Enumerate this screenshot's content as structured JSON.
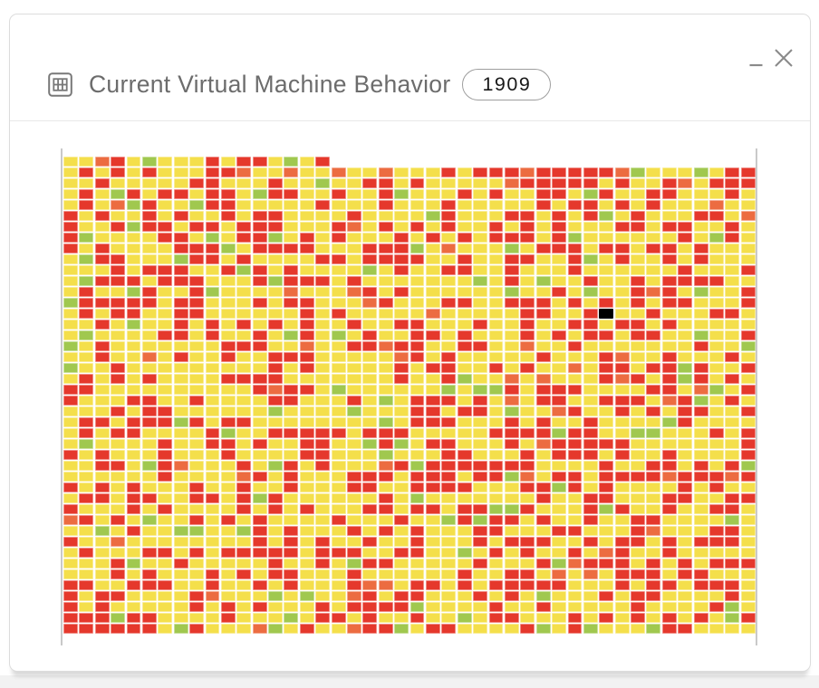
{
  "window": {
    "title": "Current Virtual Machine Behavior",
    "badge_count": "1909",
    "icons": [
      "table-grid-icon",
      "minimize-icon",
      "close-icon"
    ]
  },
  "chart_data": {
    "type": "heatmap",
    "title": "Current Virtual Machine Behavior",
    "total_cells": 1909,
    "columns": 44,
    "full_rows": 43,
    "first_row_cells": 17,
    "legend": "none",
    "grid": "off",
    "cell_colors": {
      "yellow": "#F4DF4B",
      "red": "#E5382C",
      "green": "#A0C84F",
      "orange": "#EC6C41",
      "black": "#000000"
    },
    "color_distribution": {
      "yellow": 0.56,
      "red": 0.35,
      "green": 0.063,
      "orange": 0.027
    },
    "first_row": [
      "Y",
      "Y",
      "O",
      "R",
      "Y",
      "G",
      "Y",
      "Y",
      "Y",
      "R",
      "Y",
      "R",
      "R",
      "Y",
      "G",
      "Y",
      "R"
    ],
    "black_cell": {
      "row": 14,
      "col": 34
    },
    "axis_line_color": "#c9c9c9",
    "random_seed": 1909
  }
}
